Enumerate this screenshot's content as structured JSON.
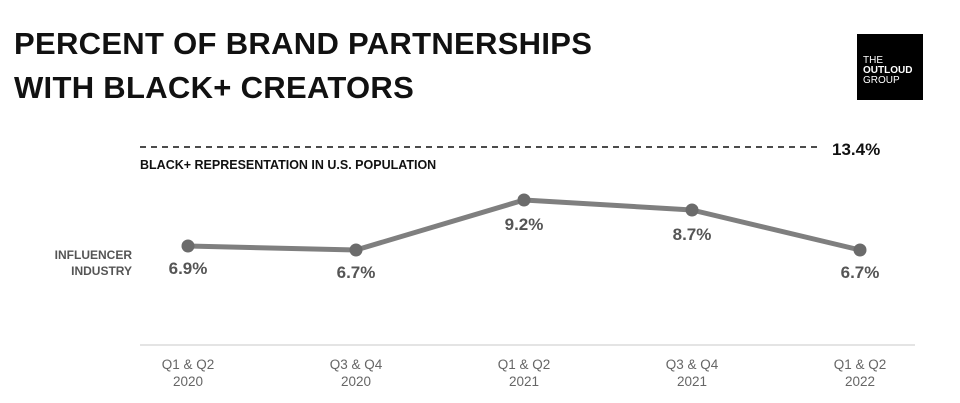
{
  "title_lines": [
    "PERCENT OF BRAND PARTNERSHIPS",
    "WITH BLACK+ CREATORS"
  ],
  "logo": {
    "line1": "THE",
    "line2": "OUTLOUD",
    "line3": "GROUP"
  },
  "colors": {
    "line": "#7f7f7f",
    "marker": "#6b6b6b",
    "text": "#111111",
    "value_text": "#555555",
    "tick_text": "#666666",
    "axis": "#c8c8c8"
  },
  "chart_data": {
    "type": "line",
    "categories": [
      [
        "Q1 & Q2",
        "2020"
      ],
      [
        "Q3 & Q4",
        "2020"
      ],
      [
        "Q1 & Q2",
        "2021"
      ],
      [
        "Q3 & Q4",
        "2021"
      ],
      [
        "Q1 & Q2",
        "2022"
      ]
    ],
    "series": [
      {
        "name": "INFLUENCER INDUSTRY",
        "values": [
          6.9,
          6.7,
          9.2,
          8.7,
          6.7
        ]
      }
    ],
    "value_labels": [
      "6.9%",
      "6.7%",
      "9.2%",
      "8.7%",
      "6.7%"
    ],
    "reference_line": {
      "value": 13.4,
      "label": "BLACK+ REPRESENTATION IN U.S. POPULATION",
      "value_label": "13.4%",
      "style": "dashed"
    },
    "series_label_lines": [
      "INFLUENCER",
      "INDUSTRY"
    ],
    "grid": false,
    "title": "PERCENT OF BRAND PARTNERSHIPS WITH BLACK+ CREATORS"
  }
}
